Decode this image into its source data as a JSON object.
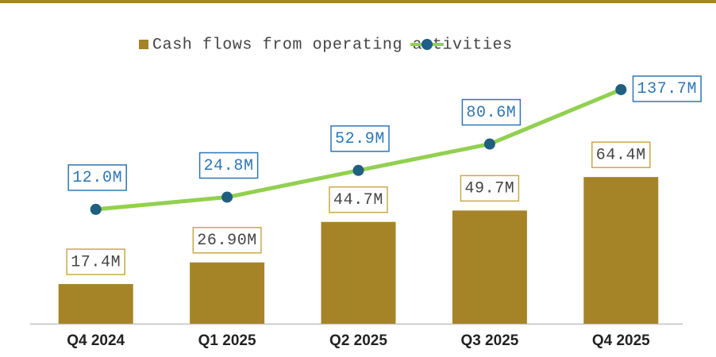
{
  "chart_data": {
    "type": "bar-line",
    "categories": [
      "Q4 2024",
      "Q1 2025",
      "Q2 2025",
      "Q3 2025",
      "Q4 2025"
    ],
    "series": [
      {
        "name": "Cash flows from operating activities",
        "type": "bar",
        "color": "#a58428",
        "values": [
          17.4,
          26.9,
          44.7,
          49.7,
          64.4
        ],
        "value_labels": [
          "17.4M",
          "26.90M",
          "44.7M",
          "49.7M",
          "64.4M"
        ]
      },
      {
        "type": "line",
        "axis": "y2",
        "color": "#92d050",
        "marker_color": "#1f5f7f",
        "values": [
          12.0,
          24.8,
          52.9,
          80.6,
          137.7
        ],
        "value_labels": [
          "12.0M",
          "24.8M",
          "52.9M",
          "80.6M",
          "137.7M"
        ]
      }
    ],
    "ylim": [
      0,
      100
    ],
    "y2lim": [
      -108,
      131
    ]
  }
}
